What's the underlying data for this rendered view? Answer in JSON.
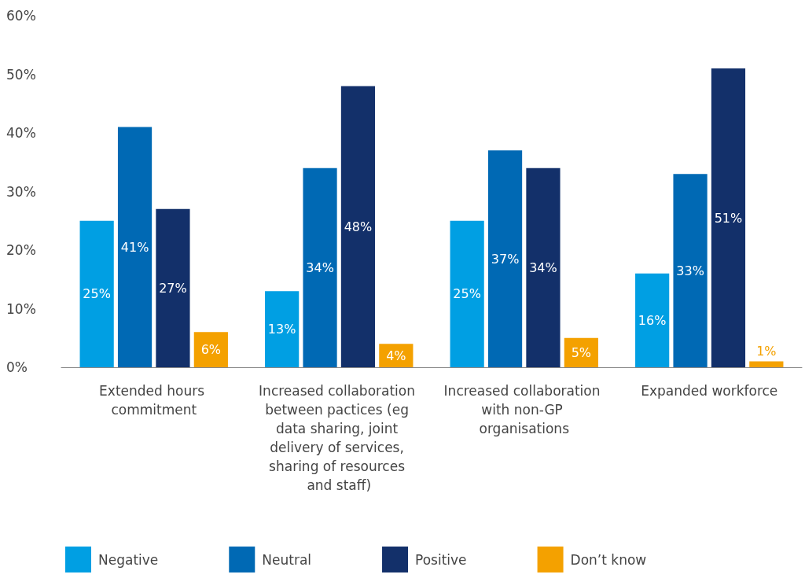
{
  "chart_data": {
    "type": "bar",
    "categories": [
      "Extended hours commitment",
      "Increased collaboration between pactices (eg data sharing, joint delivery of services, sharing of resources and staff)",
      "Increased collaboration with non-GP organisations",
      "Expanded workforce"
    ],
    "series": [
      {
        "name": "Negative",
        "color": "#009fe3",
        "values": [
          25,
          13,
          25,
          16
        ],
        "value_labels": [
          "25%",
          "13%",
          "25%",
          "16%"
        ]
      },
      {
        "name": "Neutral",
        "color": "#0069b4",
        "values": [
          41,
          34,
          37,
          33
        ],
        "value_labels": [
          "41%",
          "34%",
          "37%",
          "33%"
        ]
      },
      {
        "name": "Positive",
        "color": "#13306a",
        "values": [
          27,
          48,
          34,
          51
        ],
        "value_labels": [
          "27%",
          "48%",
          "34%",
          "51%"
        ]
      },
      {
        "name": "Don’t know",
        "color": "#f4a100",
        "values": [
          6,
          4,
          5,
          1
        ],
        "value_labels": [
          "6%",
          "4%",
          "5%",
          "1%"
        ]
      }
    ],
    "ylim": [
      0,
      60
    ],
    "yticks": [
      {
        "value": 0,
        "label": "0%"
      },
      {
        "value": 10,
        "label": "10%"
      },
      {
        "value": 20,
        "label": "20%"
      },
      {
        "value": 30,
        "label": "30%"
      },
      {
        "value": 40,
        "label": "40%"
      },
      {
        "value": 50,
        "label": "50%"
      },
      {
        "value": 60,
        "label": "60%"
      }
    ],
    "grid": false,
    "legend": "bottom"
  }
}
